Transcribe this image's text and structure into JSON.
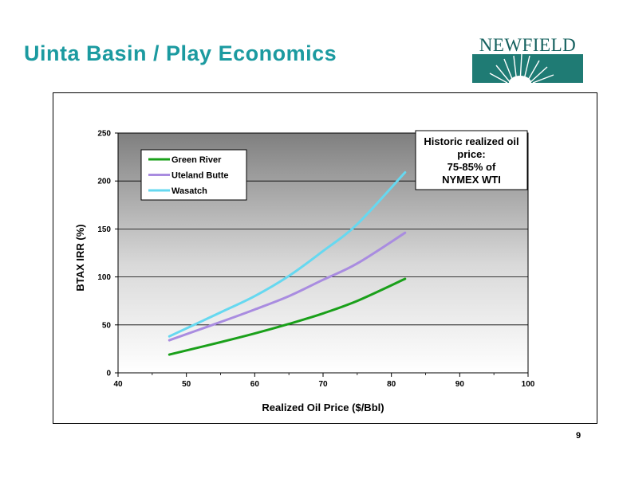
{
  "page": {
    "title": "Uinta Basin /  Play Economics",
    "page_number": "9"
  },
  "logo": {
    "text": "NEWFIELD"
  },
  "chart_data": {
    "type": "line",
    "xlabel": "Realized Oil Price ($/Bbl)",
    "ylabel": "BTAX  IRR (%)",
    "xlim": [
      40,
      100
    ],
    "ylim": [
      0,
      250
    ],
    "x_ticks": [
      40,
      50,
      60,
      70,
      80,
      90,
      100
    ],
    "y_ticks": [
      0,
      50,
      100,
      150,
      200,
      250
    ],
    "grid": "horizontal",
    "legend_position": "top-left",
    "annotation": [
      "Historic realized oil",
      "price:",
      "75-85% of",
      "NYMEX WTI"
    ],
    "series": [
      {
        "name": "Green River",
        "color": "#1aa01a",
        "x": [
          47.5,
          55,
          60,
          65,
          70,
          75,
          82
        ],
        "y": [
          19,
          32,
          41,
          51,
          62,
          75,
          98
        ]
      },
      {
        "name": "Uteland Butte",
        "color": "#a98ce0",
        "x": [
          47.5,
          55,
          60,
          65,
          70,
          75,
          82
        ],
        "y": [
          34,
          53,
          66,
          80,
          97,
          114,
          146
        ]
      },
      {
        "name": "Wasatch",
        "color": "#66d8f0",
        "x": [
          47.5,
          55,
          60,
          65,
          70,
          75,
          82
        ],
        "y": [
          38,
          63,
          80,
          101,
          127,
          155,
          209
        ]
      }
    ]
  }
}
